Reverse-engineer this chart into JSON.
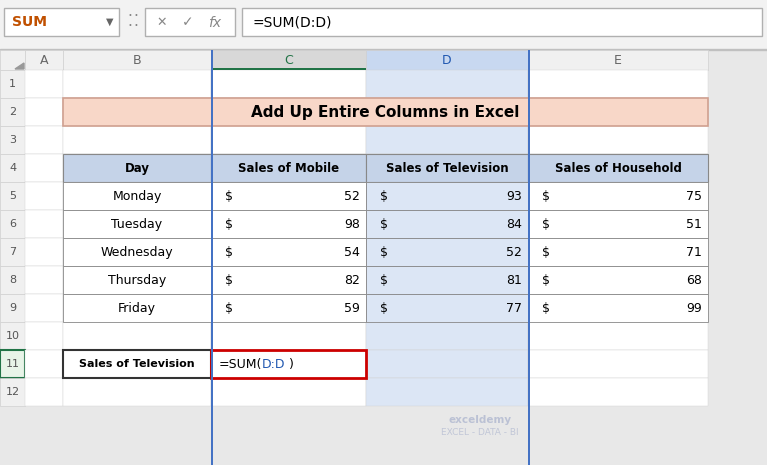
{
  "title_bar_text": "Add Up Entire Columns in Excel",
  "title_bg": "#F8D7C8",
  "header_bg": "#C5D3E8",
  "col_headers": [
    "Day",
    "Sales of Mobile",
    "Sales of Television",
    "Sales of Household"
  ],
  "rows": [
    [
      "Monday",
      "$",
      52,
      "$",
      93,
      "$",
      75
    ],
    [
      "Tuesday",
      "$",
      98,
      "$",
      84,
      "$",
      51
    ],
    [
      "Wednesday",
      "$",
      54,
      "$",
      52,
      "$",
      71
    ],
    [
      "Thursday",
      "$",
      82,
      "$",
      81,
      "$",
      68
    ],
    [
      "Friday",
      "$",
      59,
      "$",
      77,
      "$",
      99
    ]
  ],
  "formula_label": "Sales of Television",
  "formula_text": "=SUM(",
  "formula_dd": "D:D",
  "formula_close": ")",
  "toolbar_text": "=SUM(D:D)",
  "name_box": "SUM",
  "bg_color": "#E8E8E8",
  "cell_bg": "#FFFFFF",
  "col_D_highlight": "#DCE6F5",
  "col_C_selected_bg": "#D8D8D8",
  "col_C_header_bottom": "#217346",
  "col_D_header_bg": "#C8D8F0",
  "header_row_bg": "#E0E0E0",
  "formula_box_border": "#CC0000",
  "formula_dd_color": "#1E56B0",
  "col_labels": [
    "A",
    "B",
    "C",
    "D",
    "E"
  ],
  "watermark_line1": "exceldemy",
  "watermark_line2": "EXCEL - DATA - BI",
  "toolbar_bg": "#F2F2F2",
  "row_num_bg": "#F0F0F0",
  "col_header_bg": "#F0F0F0",
  "grid_color": "#D0D0D0",
  "table_border": "#888888"
}
